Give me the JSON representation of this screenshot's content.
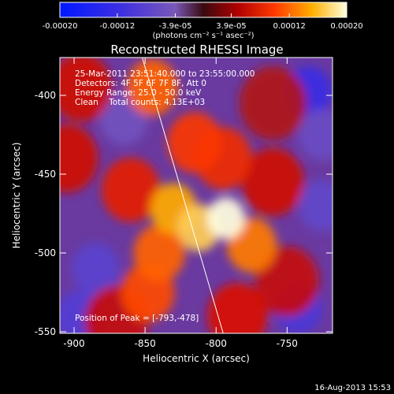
{
  "colorbar": {
    "tick_labels": [
      "-0.00020",
      "-0.00012",
      "-3.9e-05",
      "3.9e-05",
      "0.00012",
      "0.00020"
    ],
    "tick_values": [
      -0.0002,
      -0.00012,
      -3.9e-05,
      3.9e-05,
      0.00012,
      0.0002
    ],
    "range": [
      -0.0002,
      0.0002
    ],
    "units": "(photons cm⁻² s⁻¹ asec⁻²)"
  },
  "chart_data": {
    "type": "heatmap",
    "title": "Reconstructed RHESSI Image",
    "xlabel": "Heliocentric X (arcsec)",
    "ylabel": "Heliocentric Y (arcsec)",
    "xlim": [
      -910,
      -718
    ],
    "ylim": [
      -551,
      -376
    ],
    "x_ticks": [
      -900,
      -850,
      -800,
      -750
    ],
    "x_tick_labels": [
      "-900",
      "-850",
      "-800",
      "-750"
    ],
    "y_ticks": [
      -400,
      -450,
      -500,
      -550
    ],
    "y_tick_labels": [
      "-400",
      "-450",
      "-500",
      "-550"
    ],
    "annotations": [
      "25-Mar-2011 23:51:40.000 to 23:55:00.000",
      "Detectors: 4F 5F 6F 7F 8F, Att 0",
      "Energy Range: 25.0 - 50.0 keV",
      "Clean    Total counts: 4.13E+03"
    ],
    "peak_label": "Position of Peak = [-793,-478]",
    "peak": [
      -793,
      -478
    ],
    "limb_line": [
      [
        -852,
        -376
      ],
      [
        -795,
        -551
      ]
    ],
    "intensity_blobs": [
      {
        "x": -793,
        "y": -478,
        "value": 0.0002
      },
      {
        "x": -812,
        "y": -484,
        "value": 0.00017
      },
      {
        "x": -830,
        "y": -472,
        "value": 0.00015
      },
      {
        "x": -775,
        "y": -495,
        "value": 0.00013
      },
      {
        "x": -840,
        "y": -500,
        "value": 0.00012
      },
      {
        "x": -848,
        "y": -525,
        "value": 0.00011
      },
      {
        "x": -845,
        "y": -395,
        "value": 0.00012
      },
      {
        "x": -815,
        "y": -430,
        "value": 0.0001
      },
      {
        "x": -795,
        "y": -440,
        "value": 9e-05
      },
      {
        "x": -860,
        "y": -460,
        "value": 8e-05
      },
      {
        "x": -785,
        "y": -540,
        "value": 7e-05
      },
      {
        "x": -895,
        "y": -395,
        "value": 6e-05
      },
      {
        "x": -905,
        "y": -440,
        "value": 6e-05
      },
      {
        "x": -760,
        "y": -455,
        "value": 6e-05
      },
      {
        "x": -750,
        "y": -518,
        "value": 5e-05
      },
      {
        "x": -870,
        "y": -543,
        "value": 5e-05
      },
      {
        "x": -760,
        "y": -405,
        "value": 3e-05
      },
      {
        "x": -885,
        "y": -510,
        "value": -8e-05
      },
      {
        "x": -735,
        "y": -398,
        "value": -0.00012
      },
      {
        "x": -742,
        "y": -535,
        "value": -0.0001
      },
      {
        "x": -896,
        "y": -540,
        "value": -9e-05
      },
      {
        "x": -725,
        "y": -470,
        "value": -7e-05
      },
      {
        "x": -865,
        "y": -415,
        "value": -5e-05
      },
      {
        "x": -725,
        "y": -425,
        "value": -6e-05
      }
    ]
  },
  "footer": {
    "date": "16-Aug-2013 15:53"
  }
}
